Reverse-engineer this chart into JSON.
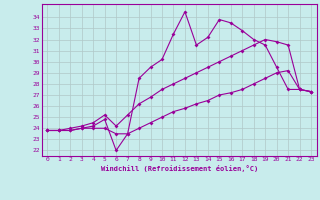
{
  "xlabel": "Windchill (Refroidissement éolien,°C)",
  "bg_color": "#c8ecec",
  "line_color": "#990099",
  "grid_color": "#b0c8c8",
  "x_values": [
    0,
    1,
    2,
    3,
    4,
    5,
    6,
    7,
    8,
    9,
    10,
    11,
    12,
    13,
    14,
    15,
    16,
    17,
    18,
    19,
    20,
    21,
    22,
    23
  ],
  "line1": [
    23.8,
    23.8,
    23.8,
    24.0,
    24.2,
    24.8,
    22.0,
    23.5,
    28.5,
    29.5,
    30.2,
    32.5,
    34.5,
    31.5,
    32.2,
    33.8,
    33.5,
    32.8,
    32.0,
    31.5,
    29.5,
    27.5,
    27.5,
    27.3
  ],
  "line2": [
    23.8,
    23.8,
    24.0,
    24.2,
    24.5,
    25.2,
    24.2,
    25.2,
    26.2,
    26.8,
    27.5,
    28.0,
    28.5,
    29.0,
    29.5,
    30.0,
    30.5,
    31.0,
    31.5,
    32.0,
    31.8,
    31.5,
    27.5,
    27.3
  ],
  "line3": [
    23.8,
    23.8,
    23.8,
    24.0,
    24.0,
    24.0,
    23.5,
    23.5,
    24.0,
    24.5,
    25.0,
    25.5,
    25.8,
    26.2,
    26.5,
    27.0,
    27.2,
    27.5,
    28.0,
    28.5,
    29.0,
    29.2,
    27.5,
    27.3
  ],
  "xlim": [
    -0.5,
    23.5
  ],
  "ylim": [
    21.5,
    35.2
  ],
  "yticks": [
    22,
    23,
    24,
    25,
    26,
    27,
    28,
    29,
    30,
    31,
    32,
    33,
    34
  ],
  "xticks": [
    0,
    1,
    2,
    3,
    4,
    5,
    6,
    7,
    8,
    9,
    10,
    11,
    12,
    13,
    14,
    15,
    16,
    17,
    18,
    19,
    20,
    21,
    22,
    23
  ]
}
